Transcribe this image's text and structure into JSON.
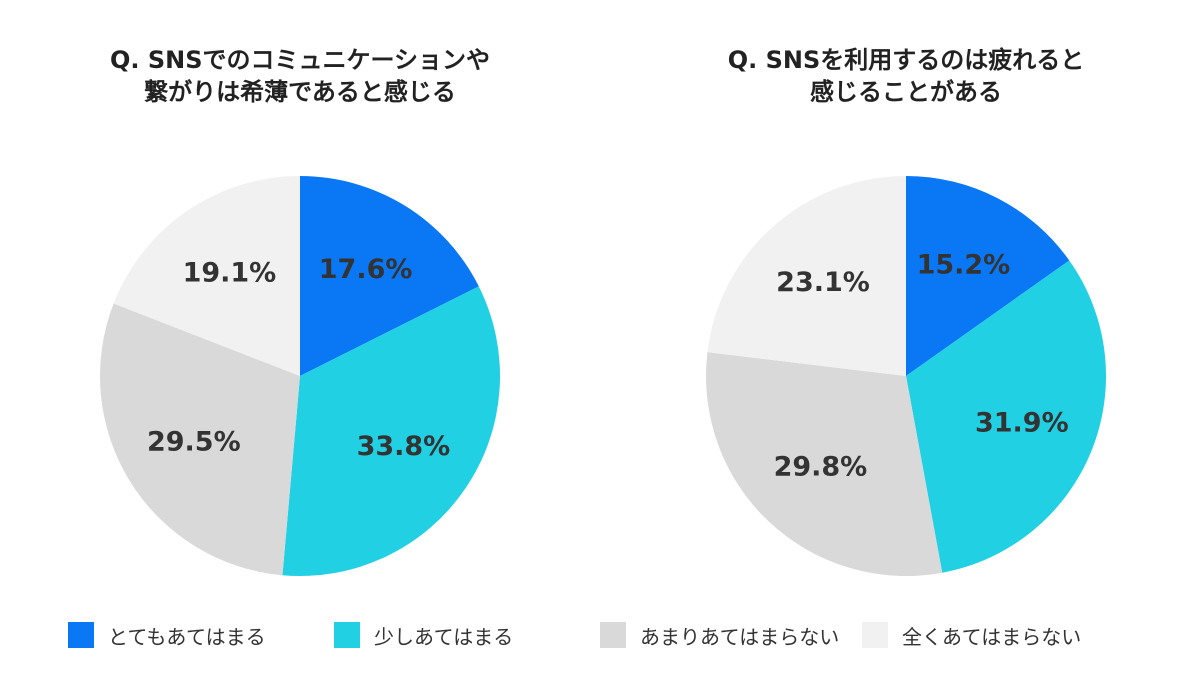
{
  "legend": [
    {
      "label": "とてもあてはまる",
      "color": "#0a78f5"
    },
    {
      "label": "少しあてはまる",
      "color": "#22d0e4"
    },
    {
      "label": "あまりあてはまらない",
      "color": "#d9d9d9"
    },
    {
      "label": "全くあてはまらない",
      "color": "#f1f1f1"
    }
  ],
  "chart_data": [
    {
      "type": "pie",
      "title_lines": [
        "Q. SNSでのコミュニケーションや",
        "繋がりは希薄であると感じる"
      ],
      "categories": [
        "とてもあてはまる",
        "少しあてはまる",
        "あまりあてはまらない",
        "全くあてはまらない"
      ],
      "values": [
        17.6,
        33.8,
        29.5,
        19.1
      ],
      "labels": [
        "17.6%",
        "33.8%",
        "29.5%",
        "19.1%"
      ],
      "colors": [
        "#0a78f5",
        "#22d0e4",
        "#d9d9d9",
        "#f1f1f1"
      ],
      "start": "12 o'clock",
      "direction": "clockwise",
      "legend_position": "bottom"
    },
    {
      "type": "pie",
      "title_lines": [
        "Q. SNSを利用するのは疲れると",
        "感じることがある"
      ],
      "categories": [
        "とてもあてはまる",
        "少しあてはまる",
        "あまりあてはまらない",
        "全くあてはまらない"
      ],
      "values": [
        15.2,
        31.9,
        29.8,
        23.1
      ],
      "labels": [
        "15.2%",
        "31.9%",
        "29.8%",
        "23.1%"
      ],
      "colors": [
        "#0a78f5",
        "#22d0e4",
        "#d9d9d9",
        "#f1f1f1"
      ],
      "start": "12 o'clock",
      "direction": "clockwise",
      "legend_position": "bottom"
    }
  ]
}
